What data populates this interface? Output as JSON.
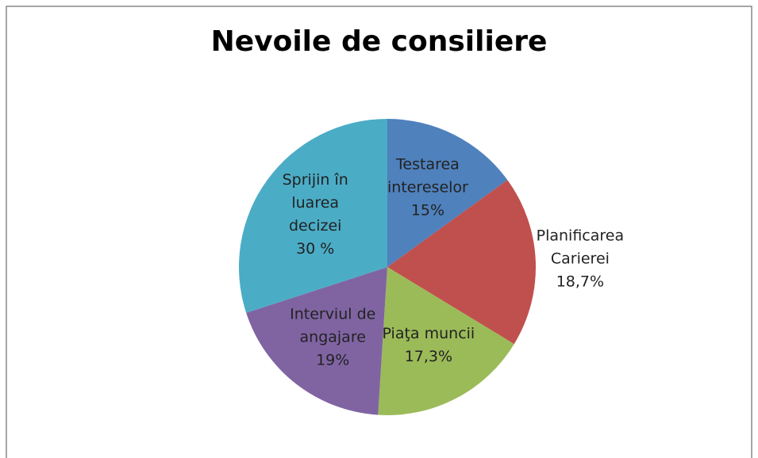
{
  "chart_data": {
    "type": "pie",
    "title": "Nevoile de consiliere",
    "categories": [
      "Testarea intereselor",
      "Planificarea Carierei",
      "Piaţa muncii",
      "Interviul de angajare",
      "Sprijin în luarea decizei"
    ],
    "values": [
      15,
      18.7,
      17.3,
      19,
      30
    ],
    "value_labels": [
      "15%",
      "18,7%",
      "17,3%",
      "19%",
      "30 %"
    ],
    "colors": [
      "#4f81bd",
      "#c0504d",
      "#9bbb59",
      "#8064a2",
      "#4bacc6"
    ]
  }
}
